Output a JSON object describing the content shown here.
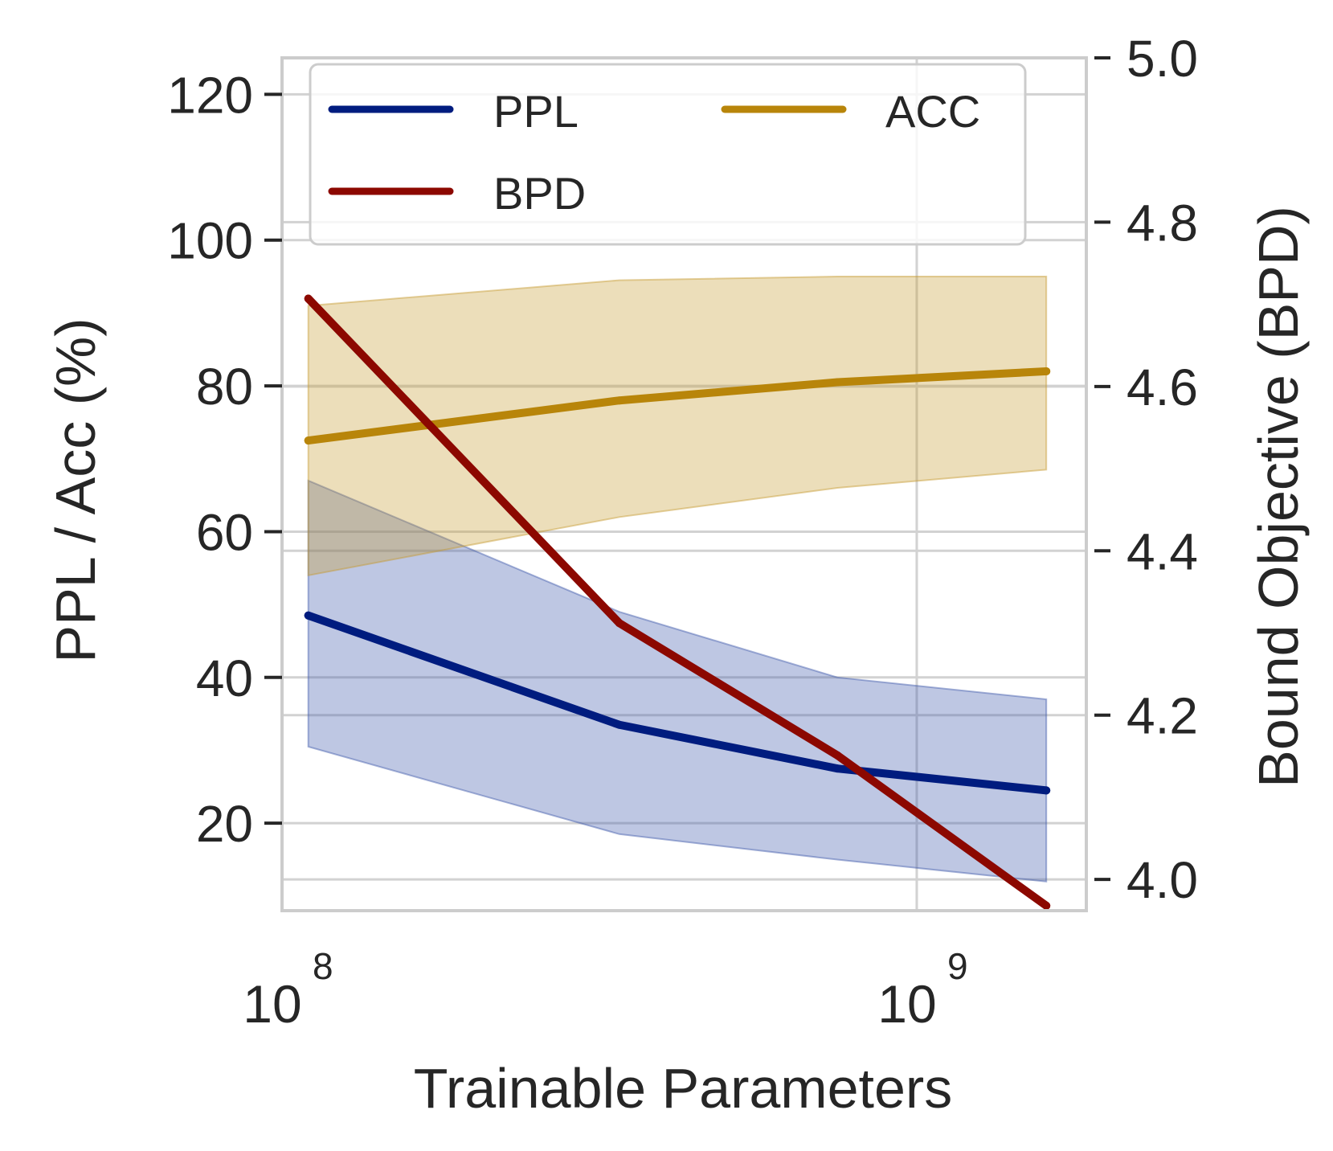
{
  "chart_data": {
    "type": "line",
    "xlabel": "Trainable Parameters",
    "ylabel_left": "PPL / Acc (%)",
    "ylabel_right": "Bound Objective (BPD)",
    "x_scale": "log",
    "xlim": [
      100000000,
      1850000000
    ],
    "x_ticks": [
      {
        "value": 100000000,
        "base": "10",
        "exp": "8"
      },
      {
        "value": 1000000000,
        "base": "10",
        "exp": "9"
      }
    ],
    "ylim_left": [
      8,
      125
    ],
    "yticks_left": [
      20,
      40,
      60,
      80,
      100,
      120
    ],
    "ylim_right": [
      3.962,
      5.0
    ],
    "yticks_right": [
      "4.0",
      "4.2",
      "4.4",
      "4.6",
      "4.8",
      "5.0"
    ],
    "grid": true,
    "x": [
      110000000,
      340000000,
      750000000,
      1600000000
    ],
    "series": [
      {
        "name": "PPL",
        "axis": "left",
        "color": "#001c7f",
        "values": [
          48.5,
          33.5,
          27.5,
          24.5
        ],
        "band_low": [
          30.5,
          18.5,
          15,
          12
        ],
        "band_high": [
          67,
          49,
          40,
          37
        ],
        "band_color": "#3b56a9"
      },
      {
        "name": "ACC",
        "axis": "left",
        "color": "#b8850a",
        "values": [
          72.5,
          78,
          80.5,
          82
        ],
        "band_low": [
          54,
          62,
          66,
          68.5
        ],
        "band_high": [
          91,
          94.5,
          95,
          95
        ],
        "band_color": "#c69a2e"
      },
      {
        "name": "BPD",
        "axis": "right",
        "color": "#8c0800",
        "values": [
          4.707,
          4.312,
          4.151,
          3.968
        ]
      }
    ],
    "legend": {
      "position": "upper",
      "ncol": 2,
      "entries": [
        "PPL",
        "ACC",
        "BPD"
      ]
    }
  }
}
